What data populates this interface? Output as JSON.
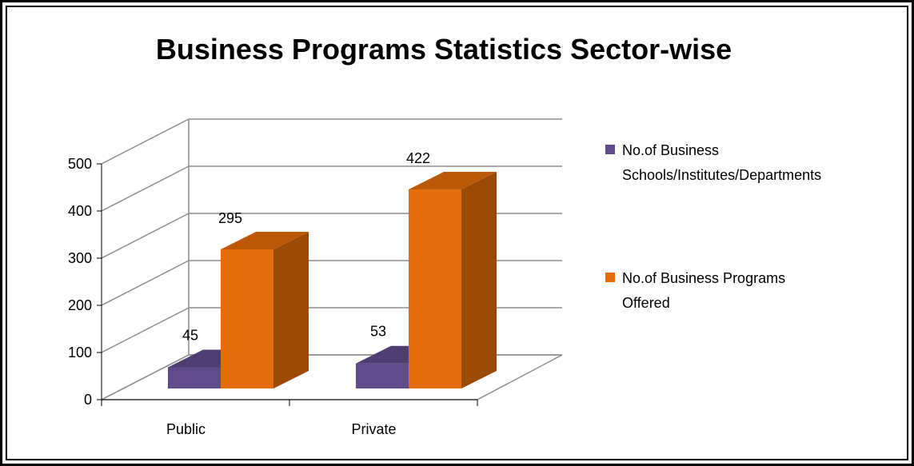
{
  "chart_data": {
    "type": "bar",
    "title": "Business Programs Statistics Sector-wise",
    "categories": [
      "Public",
      "Private"
    ],
    "series": [
      {
        "name": "No.of Business Schools/Institutes/Departments",
        "values": [
          45,
          53
        ],
        "color": "#5f4b8b"
      },
      {
        "name": "No.of Business Programs Offered",
        "values": [
          295,
          422
        ],
        "color": "#e46c0a"
      }
    ],
    "ylim": [
      0,
      500
    ],
    "yticks": [
      0,
      100,
      200,
      300,
      400,
      500
    ],
    "grid": true,
    "legend": "right",
    "style": "3d-column"
  }
}
